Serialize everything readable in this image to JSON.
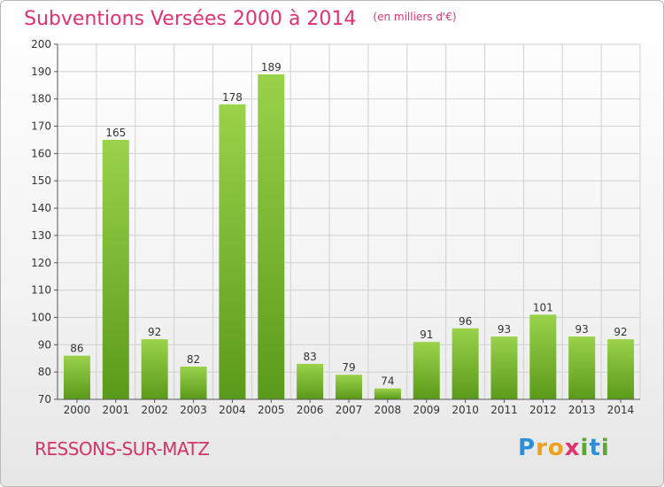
{
  "title": "Subventions Versées 2000 à 2014",
  "unit_note": "(en milliers d'€)",
  "town": "RESSONS-SUR-MATZ",
  "logo": {
    "text": "Proxiti",
    "letters": [
      "P",
      "r",
      "o",
      "x",
      "i",
      "t",
      "i"
    ],
    "colors": [
      "#2b8fd6",
      "#f0a020",
      "#f0a020",
      "#e0336b",
      "#5aa832",
      "#2b8fd6",
      "#5aa832"
    ]
  },
  "colors": {
    "bar_light": "#9ad24a",
    "bar_dark": "#5a9a1a",
    "title": "#e0336b",
    "grid": "#d0d0d0"
  },
  "chart_data": {
    "type": "bar",
    "categories": [
      "2000",
      "2001",
      "2002",
      "2003",
      "2004",
      "2005",
      "2006",
      "2007",
      "2008",
      "2009",
      "2010",
      "2011",
      "2012",
      "2013",
      "2014"
    ],
    "values": [
      86,
      165,
      92,
      82,
      178,
      189,
      83,
      79,
      74,
      91,
      96,
      93,
      101,
      93,
      92
    ],
    "ylim": [
      70,
      200
    ],
    "yticks": [
      70,
      80,
      90,
      100,
      110,
      120,
      130,
      140,
      150,
      160,
      170,
      180,
      190,
      200
    ],
    "grid": true,
    "title": "Subventions Versées 2000 à 2014",
    "xlabel": "",
    "ylabel": ""
  }
}
